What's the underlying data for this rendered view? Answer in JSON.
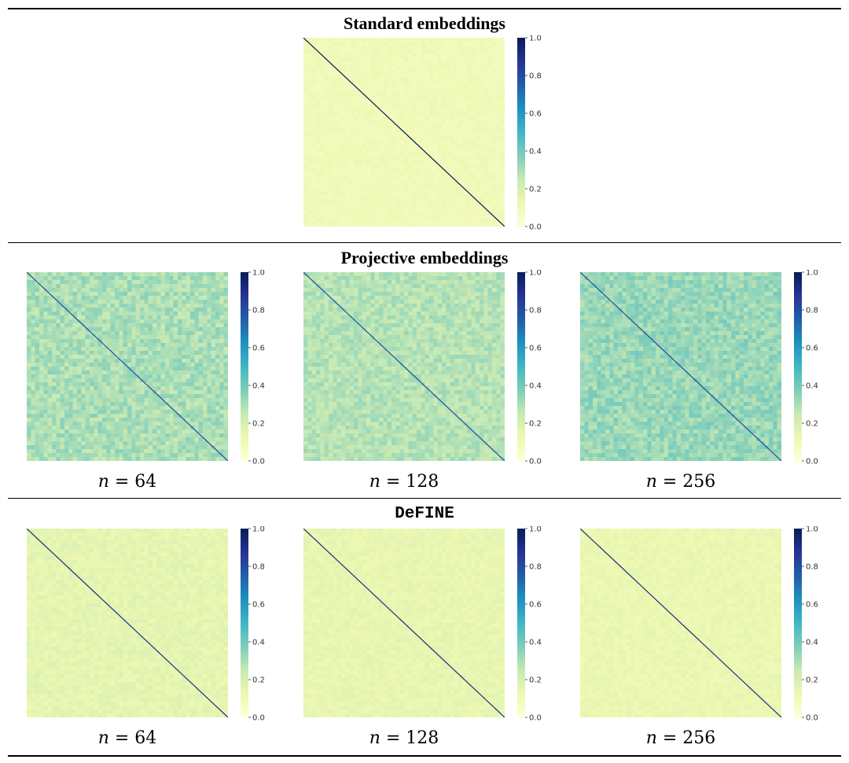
{
  "figure": {
    "sections": [
      {
        "title": "Standard embeddings",
        "mono": false
      },
      {
        "title": "Projective embeddings",
        "mono": false
      },
      {
        "title": "DeFINE",
        "mono": true
      }
    ],
    "colorbar_ticks": [
      "1.0",
      "0.8",
      "0.6",
      "0.4",
      "0.2",
      "0.0"
    ],
    "colormap": [
      "#ffffd9",
      "#edf8b1",
      "#c7e9b4",
      "#7fcdbb",
      "#41b6c4",
      "#1d91c0",
      "#225ea8",
      "#253494",
      "#081d58"
    ]
  },
  "chart_data": [
    {
      "type": "heatmap",
      "section": "Standard embeddings",
      "caption": "",
      "diagonal_value": 1.0,
      "background_value": 0.1,
      "noise": 0.02,
      "colorbar_range": [
        0,
        1
      ]
    },
    {
      "type": "heatmap",
      "section": "Projective embeddings",
      "caption_var": "n",
      "caption_rest": " = 64",
      "diagonal_value": 0.8,
      "background_value": 0.3,
      "noise": 0.06,
      "colorbar_range": [
        0,
        1
      ]
    },
    {
      "type": "heatmap",
      "section": "Projective embeddings",
      "caption_var": "n",
      "caption_rest": " = 128",
      "diagonal_value": 0.8,
      "background_value": 0.28,
      "noise": 0.05,
      "colorbar_range": [
        0,
        1
      ]
    },
    {
      "type": "heatmap",
      "section": "Projective embeddings",
      "caption_var": "n",
      "caption_rest": " = 256",
      "diagonal_value": 0.8,
      "background_value": 0.33,
      "noise": 0.06,
      "colorbar_range": [
        0,
        1
      ]
    },
    {
      "type": "heatmap",
      "section": "DeFINE",
      "caption_var": "n",
      "caption_rest": " = 64",
      "diagonal_value": 0.9,
      "background_value": 0.15,
      "noise": 0.03,
      "colorbar_range": [
        0,
        1
      ]
    },
    {
      "type": "heatmap",
      "section": "DeFINE",
      "caption_var": "n",
      "caption_rest": " = 128",
      "diagonal_value": 0.9,
      "background_value": 0.14,
      "noise": 0.025,
      "colorbar_range": [
        0,
        1
      ]
    },
    {
      "type": "heatmap",
      "section": "DeFINE",
      "caption_var": "n",
      "caption_rest": " = 256",
      "diagonal_value": 0.9,
      "background_value": 0.13,
      "noise": 0.025,
      "colorbar_range": [
        0,
        1
      ]
    }
  ]
}
